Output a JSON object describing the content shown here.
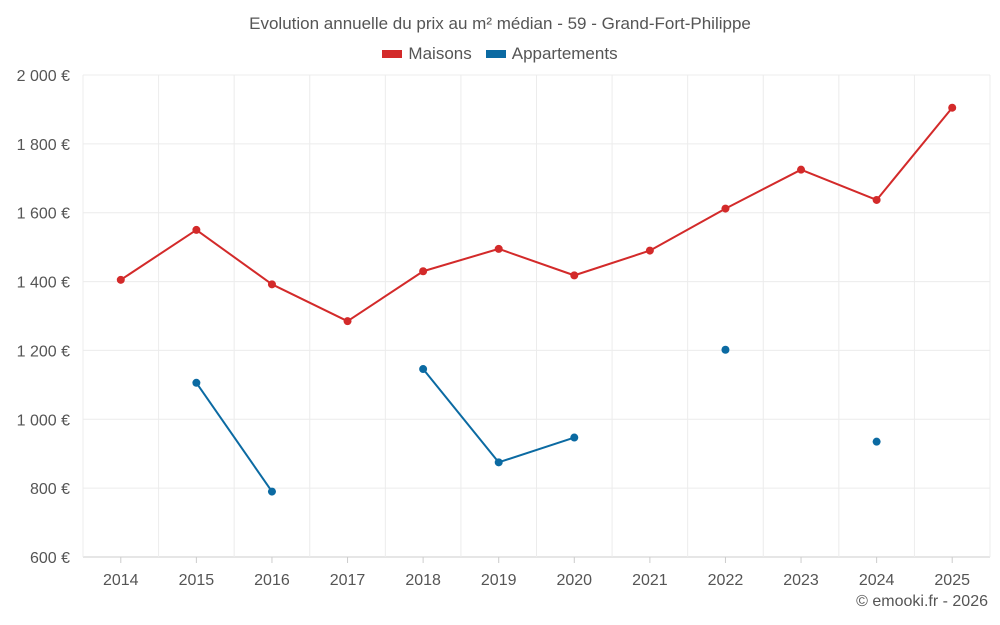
{
  "chart_data": {
    "type": "line",
    "title": "Evolution annuelle du prix au m² médian - 59 - Grand-Fort-Philippe",
    "categories": [
      "2014",
      "2015",
      "2016",
      "2017",
      "2018",
      "2019",
      "2020",
      "2021",
      "2022",
      "2023",
      "2024",
      "2025"
    ],
    "ylim": [
      600,
      2000
    ],
    "yticks": [
      600,
      800,
      1000,
      1200,
      1400,
      1600,
      1800,
      2000
    ],
    "ytick_labels": [
      "600 €",
      "800 €",
      "1 000 €",
      "1 200 €",
      "1 400 €",
      "1 600 €",
      "1 800 €",
      "2 000 €"
    ],
    "grid": true,
    "legend_position": "top-center",
    "series": [
      {
        "name": "Maisons",
        "color": "#d32a2a",
        "values": [
          1405,
          1550,
          1392,
          1285,
          1430,
          1495,
          1418,
          1490,
          1612,
          1725,
          1637,
          1905
        ]
      },
      {
        "name": "Appartements",
        "color": "#0b6aa2",
        "values": [
          null,
          1106,
          790,
          null,
          1146,
          875,
          947,
          null,
          1202,
          null,
          935,
          null
        ]
      }
    ]
  },
  "credit": "© emooki.fr - 2026"
}
